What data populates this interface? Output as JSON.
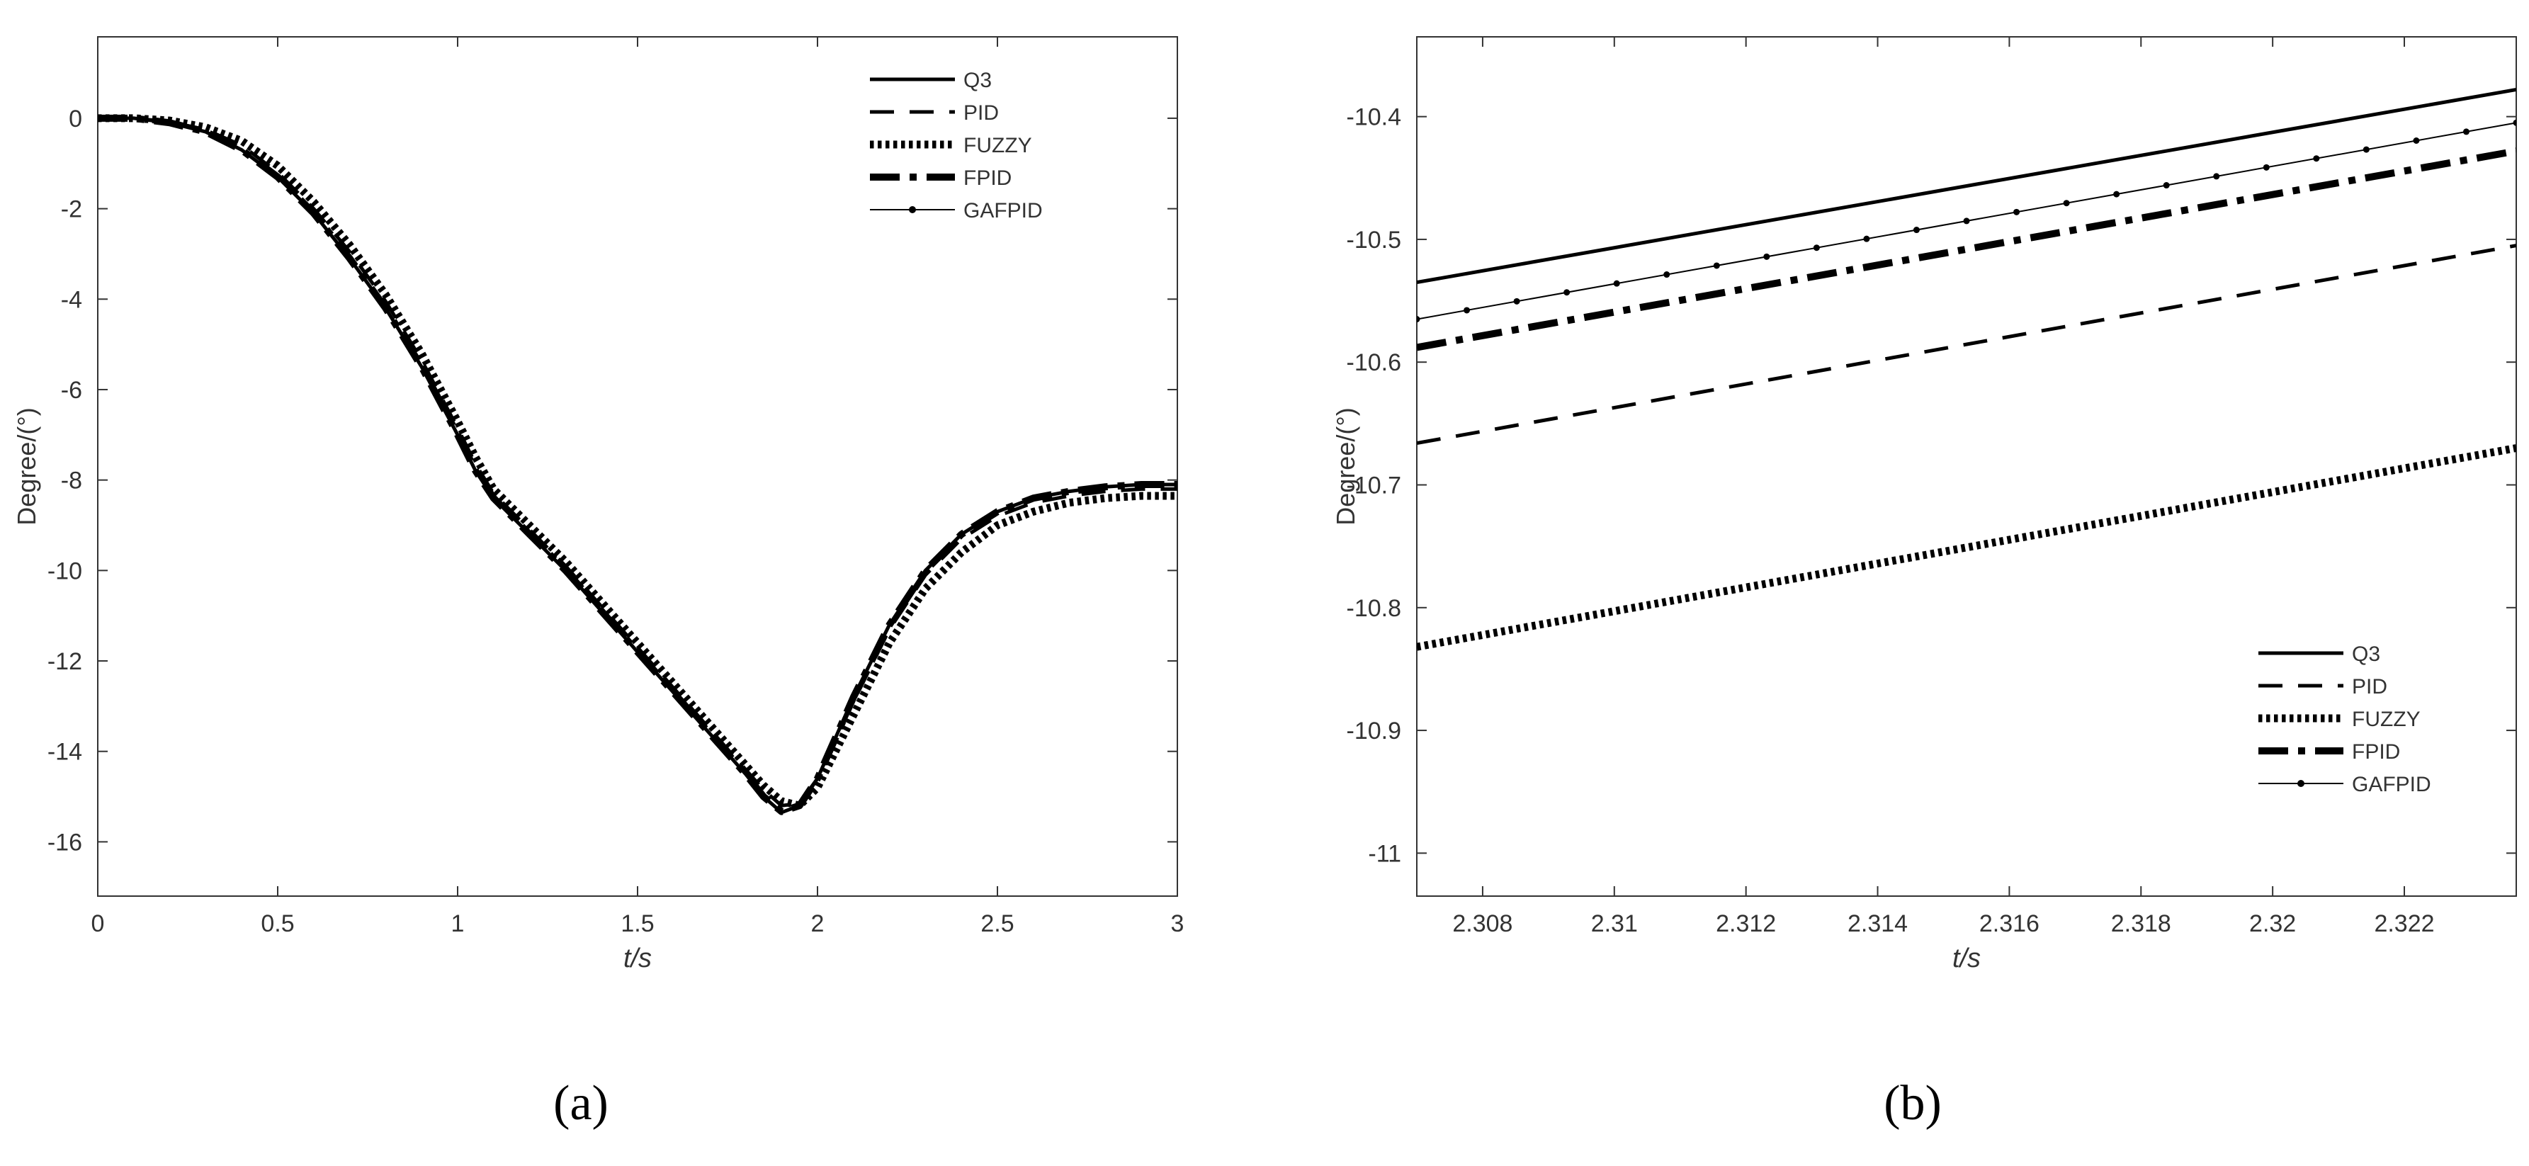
{
  "panel_labels": [
    "(a)",
    "(b)"
  ],
  "chart_data": [
    {
      "type": "line",
      "panel": "(a)",
      "xlabel": "t/s",
      "ylabel": "Degree/(°)",
      "xlim": [
        0,
        3
      ],
      "ylim": [
        -17.2,
        1.8
      ],
      "xticks": [
        0,
        0.5,
        1,
        1.5,
        2,
        2.5,
        3
      ],
      "xtick_labels": [
        "0",
        "0.5",
        "1",
        "1.5",
        "2",
        "2.5",
        "3"
      ],
      "yticks": [
        0,
        -2,
        -4,
        -6,
        -8,
        -10,
        -12,
        -14,
        -16
      ],
      "ytick_labels": [
        "0",
        "-2",
        "-4",
        "-6",
        "-8",
        "-10",
        "-12",
        "-14",
        "-16"
      ],
      "grid": false,
      "legend_position": "top-right",
      "x": [
        0,
        0.1,
        0.2,
        0.3,
        0.4,
        0.5,
        0.6,
        0.7,
        0.8,
        0.9,
        1.0,
        1.05,
        1.1,
        1.15,
        1.2,
        1.3,
        1.4,
        1.5,
        1.6,
        1.7,
        1.8,
        1.85,
        1.9,
        1.95,
        2.0,
        2.1,
        2.2,
        2.3,
        2.4,
        2.5,
        2.6,
        2.7,
        2.8,
        2.9,
        3.0
      ],
      "series": [
        {
          "name": "Q3",
          "style": "solid-thick",
          "values": [
            0,
            0,
            -0.1,
            -0.3,
            -0.7,
            -1.3,
            -2.1,
            -3.1,
            -4.2,
            -5.5,
            -7.0,
            -7.8,
            -8.4,
            -8.8,
            -9.2,
            -10.0,
            -10.9,
            -11.8,
            -12.7,
            -13.6,
            -14.5,
            -15.0,
            -15.35,
            -15.2,
            -14.6,
            -12.8,
            -11.2,
            -10.0,
            -9.2,
            -8.7,
            -8.4,
            -8.25,
            -8.15,
            -8.1,
            -8.1
          ]
        },
        {
          "name": "PID",
          "style": "dashed",
          "values": [
            0,
            0,
            -0.08,
            -0.25,
            -0.6,
            -1.2,
            -2.0,
            -2.95,
            -4.05,
            -5.35,
            -6.85,
            -7.65,
            -8.3,
            -8.7,
            -9.1,
            -9.9,
            -10.8,
            -11.7,
            -12.6,
            -13.5,
            -14.4,
            -14.85,
            -15.2,
            -15.15,
            -14.6,
            -12.9,
            -11.3,
            -10.1,
            -9.3,
            -8.8,
            -8.5,
            -8.35,
            -8.25,
            -8.2,
            -8.2
          ]
        },
        {
          "name": "FUZZY",
          "style": "dotted",
          "values": [
            0,
            0,
            -0.05,
            -0.2,
            -0.5,
            -1.05,
            -1.85,
            -2.8,
            -3.9,
            -5.2,
            -6.7,
            -7.5,
            -8.2,
            -8.6,
            -9.0,
            -9.8,
            -10.7,
            -11.6,
            -12.5,
            -13.4,
            -14.3,
            -14.75,
            -15.1,
            -15.2,
            -14.8,
            -13.2,
            -11.6,
            -10.4,
            -9.6,
            -9.0,
            -8.7,
            -8.5,
            -8.4,
            -8.35,
            -8.35
          ]
        },
        {
          "name": "FPID",
          "style": "dash-dot",
          "values": [
            0,
            0,
            -0.1,
            -0.3,
            -0.7,
            -1.3,
            -2.1,
            -3.1,
            -4.2,
            -5.5,
            -7.0,
            -7.8,
            -8.4,
            -8.8,
            -9.2,
            -10.0,
            -10.9,
            -11.8,
            -12.7,
            -13.6,
            -14.5,
            -15.0,
            -15.33,
            -15.2,
            -14.6,
            -12.8,
            -11.2,
            -10.0,
            -9.2,
            -8.7,
            -8.4,
            -8.25,
            -8.15,
            -8.1,
            -8.1
          ]
        },
        {
          "name": "GAFPID",
          "style": "thin-dot-marker",
          "values": [
            0,
            0,
            -0.1,
            -0.3,
            -0.7,
            -1.3,
            -2.1,
            -3.1,
            -4.2,
            -5.5,
            -7.0,
            -7.8,
            -8.4,
            -8.8,
            -9.2,
            -10.0,
            -10.9,
            -11.8,
            -12.7,
            -13.6,
            -14.5,
            -15.0,
            -15.34,
            -15.2,
            -14.6,
            -12.8,
            -11.2,
            -10.0,
            -9.2,
            -8.7,
            -8.4,
            -8.25,
            -8.15,
            -8.1,
            -8.1
          ]
        }
      ]
    },
    {
      "type": "line",
      "panel": "(b)",
      "xlabel": "t/s",
      "ylabel": "Degree/(°)",
      "xlim": [
        2.307,
        2.3237
      ],
      "ylim": [
        -11.035,
        -10.335
      ],
      "xticks": [
        2.308,
        2.31,
        2.312,
        2.314,
        2.316,
        2.318,
        2.32,
        2.322
      ],
      "xtick_labels": [
        "2.308",
        "2.31",
        "2.312",
        "2.314",
        "2.316",
        "2.318",
        "2.32",
        "2.322"
      ],
      "yticks": [
        -10.4,
        -10.5,
        -10.6,
        -10.7,
        -10.8,
        -10.9,
        -11
      ],
      "ytick_labels": [
        "-10.4",
        "-10.5",
        "-10.6",
        "-10.7",
        "-10.8",
        "-10.9",
        "-11"
      ],
      "grid": false,
      "legend_position": "bottom-right",
      "x": [
        2.307,
        2.3237
      ],
      "series": [
        {
          "name": "Q3",
          "style": "solid-thick",
          "values": [
            -10.535,
            -10.378
          ]
        },
        {
          "name": "PID",
          "style": "dashed",
          "values": [
            -10.666,
            -10.505
          ]
        },
        {
          "name": "FUZZY",
          "style": "dotted",
          "values": [
            -10.832,
            -10.67
          ]
        },
        {
          "name": "FPID",
          "style": "dash-dot",
          "values": [
            -10.588,
            -10.428
          ]
        },
        {
          "name": "GAFPID",
          "style": "thin-dot-marker",
          "values": [
            -10.565,
            -10.405
          ]
        }
      ]
    }
  ]
}
